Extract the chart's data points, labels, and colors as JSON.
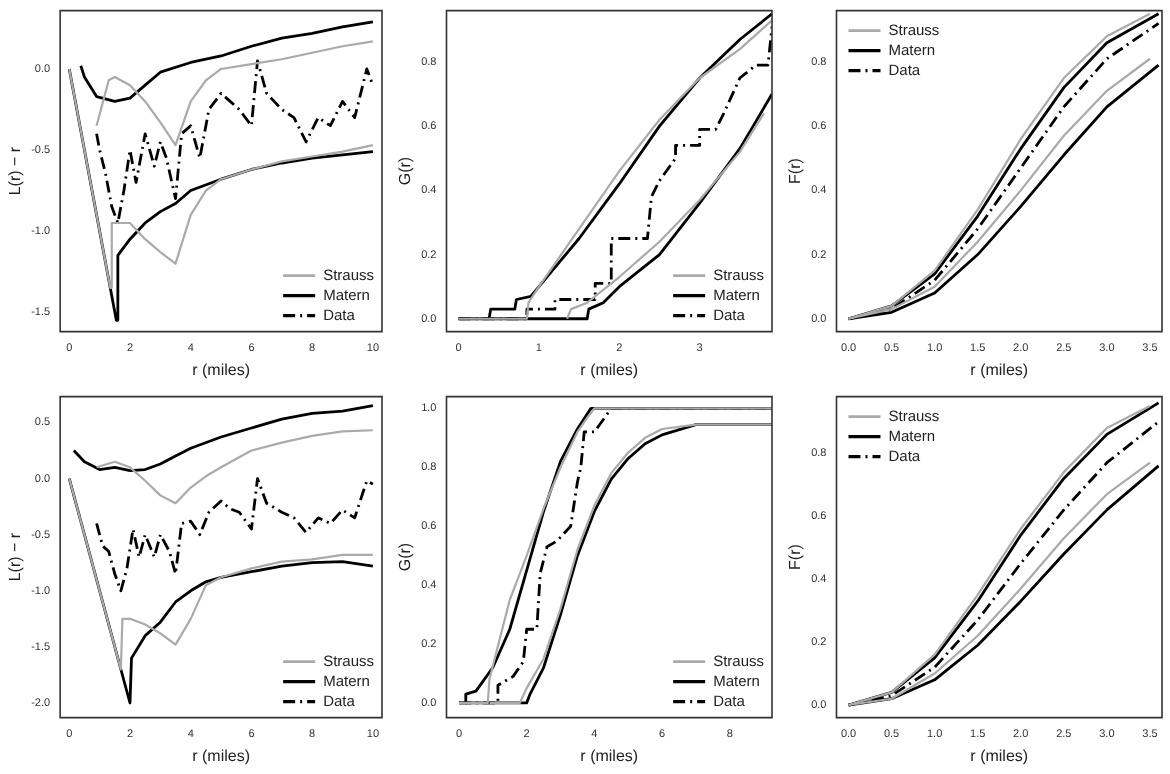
{
  "chart_data": [
    {
      "type": "line",
      "xlabel": "r (miles)",
      "ylabel": "L(r) − r",
      "xlim": [
        -0.3,
        10.3
      ],
      "ylim": [
        -1.62,
        0.36
      ],
      "xticks": [
        0,
        2,
        4,
        6,
        8,
        10
      ],
      "yticks": [
        {
          "value": -1.5,
          "label": "-1.5"
        },
        {
          "value": -1,
          "label": "-1.0"
        },
        {
          "value": -0.5,
          "label": "-0.5"
        },
        {
          "value": 0,
          "label": "0.0"
        }
      ],
      "grid": false,
      "legend": "bottom right",
      "marker": "none",
      "series": [
        {
          "name": "Strauss",
          "color": "#aaaaaa",
          "x": [
            0.9,
            1.3,
            1.5,
            2,
            2.5,
            3,
            3.5,
            4,
            4.5,
            5,
            6,
            7,
            8,
            9,
            10
          ],
          "values": [
            -0.35,
            -0.07,
            -0.05,
            -0.1,
            -0.2,
            -0.33,
            -0.47,
            -0.2,
            -0.07,
            0,
            0.03,
            0.06,
            0.1,
            0.14,
            0.17
          ]
        },
        {
          "color": "#aaaaaa",
          "x": [
            0,
            1.35,
            1.4,
            2,
            2.5,
            3,
            3.5,
            4,
            4.5,
            5,
            6,
            7,
            8,
            9,
            10
          ],
          "values": [
            0,
            -1.35,
            -0.95,
            -0.95,
            -1.05,
            -1.13,
            -1.2,
            -0.9,
            -0.75,
            -0.68,
            -0.62,
            -0.57,
            -0.54,
            -0.51,
            -0.47
          ]
        },
        {
          "name": "Matern",
          "color": "#000000",
          "x": [
            0.38,
            0.5,
            0.9,
            1.5,
            2,
            2.5,
            3,
            4,
            5,
            6,
            7,
            8,
            9,
            10
          ],
          "values": [
            0.02,
            -0.05,
            -0.17,
            -0.2,
            -0.18,
            -0.1,
            -0.02,
            0.04,
            0.08,
            0.14,
            0.19,
            0.22,
            0.26,
            0.29
          ]
        },
        {
          "color": "#000000",
          "x": [
            0,
            1.55,
            1.6,
            2,
            2.5,
            3,
            3.5,
            4,
            5,
            6,
            7,
            8,
            9,
            10
          ],
          "values": [
            0,
            -1.55,
            -1.15,
            -1.05,
            -0.95,
            -0.88,
            -0.83,
            -0.75,
            -0.68,
            -0.62,
            -0.58,
            -0.55,
            -0.53,
            -0.51
          ]
        },
        {
          "name": "Data",
          "color": "#000000",
          "line_style": "dashed",
          "x": [
            0.9,
            1,
            1.2,
            1.4,
            1.6,
            1.8,
            2,
            2.2,
            2.5,
            2.8,
            3,
            3.2,
            3.5,
            3.7,
            4,
            4.3,
            4.6,
            5,
            5.3,
            5.6,
            6,
            6.2,
            6.5,
            7,
            7.4,
            7.8,
            8.2,
            8.6,
            9,
            9.4,
            9.8,
            10
          ],
          "values": [
            -0.4,
            -0.5,
            -0.65,
            -0.85,
            -0.95,
            -0.75,
            -0.5,
            -0.7,
            -0.4,
            -0.6,
            -0.45,
            -0.55,
            -0.8,
            -0.4,
            -0.35,
            -0.55,
            -0.25,
            -0.15,
            -0.2,
            -0.25,
            -0.35,
            0.05,
            -0.15,
            -0.25,
            -0.3,
            -0.45,
            -0.3,
            -0.35,
            -0.2,
            -0.3,
            0,
            -0.1
          ]
        }
      ]
    },
    {
      "type": "line",
      "xlabel": "r (miles)",
      "ylabel": "G(r)",
      "xlim": [
        -0.15,
        3.9
      ],
      "ylim": [
        -0.04,
        0.96
      ],
      "xticks": [
        0,
        1,
        2,
        3
      ],
      "yticks": [
        {
          "value": 0,
          "label": "0.0"
        },
        0.2,
        0.4,
        0.6,
        0.8
      ],
      "grid": false,
      "legend": "bottom right",
      "marker": "none",
      "series": [
        {
          "name": "Strauss",
          "color": "#aaaaaa",
          "x": [
            0,
            0.85,
            0.87,
            1,
            1.5,
            2,
            2.5,
            3,
            3.5,
            3.9
          ],
          "values": [
            0,
            0,
            0.05,
            0.1,
            0.28,
            0.46,
            0.62,
            0.75,
            0.84,
            0.93
          ]
        },
        {
          "color": "#aaaaaa",
          "x": [
            1.35,
            1.4,
            1.6,
            2,
            2.5,
            3,
            3.5,
            3.8
          ],
          "values": [
            0,
            0.03,
            0.05,
            0.13,
            0.24,
            0.37,
            0.52,
            0.64
          ]
        },
        {
          "name": "Matern",
          "color": "#000000",
          "x": [
            0,
            0.38,
            0.4,
            0.7,
            0.72,
            0.9,
            1,
            1.5,
            2,
            2.5,
            3,
            3.5,
            3.9
          ],
          "values": [
            0,
            0,
            0.03,
            0.03,
            0.06,
            0.07,
            0.1,
            0.25,
            0.42,
            0.6,
            0.75,
            0.87,
            0.95
          ]
        },
        {
          "color": "#000000",
          "x": [
            0.4,
            1.6,
            1.62,
            1.8,
            2,
            2.5,
            3,
            3.5,
            3.9
          ],
          "values": [
            0,
            0,
            0.03,
            0.05,
            0.1,
            0.2,
            0.36,
            0.53,
            0.7
          ]
        },
        {
          "name": "Data",
          "color": "#000000",
          "line_style": "dashed",
          "x": [
            0,
            0.85,
            0.85,
            1.2,
            1.2,
            1.7,
            1.7,
            1.9,
            1.9,
            2.35,
            2.4,
            2.5,
            2.7,
            2.7,
            3,
            3,
            3.2,
            3.3,
            3.5,
            3.7,
            3.85,
            3.9
          ],
          "values": [
            0,
            0,
            0.03,
            0.03,
            0.06,
            0.06,
            0.11,
            0.11,
            0.25,
            0.25,
            0.38,
            0.43,
            0.5,
            0.54,
            0.54,
            0.59,
            0.59,
            0.64,
            0.75,
            0.79,
            0.79,
            0.91
          ]
        }
      ]
    },
    {
      "type": "line",
      "xlabel": "r (miles)",
      "ylabel": "F(r)",
      "xlim": [
        -0.14,
        3.64
      ],
      "ylim": [
        -0.04,
        0.96
      ],
      "xticks": [
        {
          "value": 0,
          "label": "0.0"
        },
        0.5,
        {
          "value": 1,
          "label": "1.0"
        },
        1.5,
        {
          "value": 2,
          "label": "2.0"
        },
        2.5,
        {
          "value": 3,
          "label": "3.0"
        },
        3.5
      ],
      "yticks": [
        {
          "value": 0,
          "label": "0.0"
        },
        0.2,
        0.4,
        0.6,
        0.8
      ],
      "grid": false,
      "legend": "top left",
      "marker": "none",
      "series": [
        {
          "name": "Strauss",
          "color": "#aaaaaa",
          "x": [
            0,
            0.5,
            1,
            1.5,
            2,
            2.5,
            3,
            3.5
          ],
          "values": [
            0,
            0.04,
            0.15,
            0.34,
            0.56,
            0.75,
            0.88,
            0.95
          ]
        },
        {
          "color": "#aaaaaa",
          "x": [
            0,
            0.5,
            1,
            1.5,
            2,
            2.5,
            3,
            3.5
          ],
          "values": [
            0,
            0.03,
            0.1,
            0.24,
            0.4,
            0.57,
            0.71,
            0.81
          ]
        },
        {
          "name": "Matern",
          "color": "#000000",
          "x": [
            0,
            0.5,
            1,
            1.5,
            2,
            2.5,
            3,
            3.6
          ],
          "values": [
            0,
            0.04,
            0.14,
            0.32,
            0.53,
            0.72,
            0.86,
            0.95
          ]
        },
        {
          "color": "#000000",
          "x": [
            0,
            0.5,
            1,
            1.5,
            2,
            2.5,
            3,
            3.6
          ],
          "values": [
            0,
            0.02,
            0.08,
            0.2,
            0.35,
            0.51,
            0.66,
            0.79
          ]
        },
        {
          "name": "Data",
          "color": "#000000",
          "line_style": "dashed",
          "x": [
            0,
            0.5,
            1,
            1.5,
            2,
            2.5,
            3,
            3.6
          ],
          "values": [
            0,
            0.03,
            0.12,
            0.28,
            0.47,
            0.66,
            0.81,
            0.92
          ]
        }
      ]
    },
    {
      "type": "line",
      "xlabel": "r (miles)",
      "ylabel": "L(r) − r",
      "xlim": [
        -0.3,
        10.3
      ],
      "ylim": [
        -2.13,
        0.73
      ],
      "xticks": [
        0,
        2,
        4,
        6,
        8,
        10
      ],
      "yticks": [
        {
          "value": -2,
          "label": "-2.0"
        },
        {
          "value": -1.5,
          "label": "-1.5"
        },
        {
          "value": -1,
          "label": "-1.0"
        },
        {
          "value": -0.5,
          "label": "-0.5"
        },
        {
          "value": 0,
          "label": "0.0"
        },
        0.5
      ],
      "grid": false,
      "legend": "bottom right",
      "marker": "none",
      "series": [
        {
          "name": "Strauss",
          "color": "#aaaaaa",
          "x": [
            0.9,
            1.5,
            2,
            2.5,
            3,
            3.5,
            4,
            4.5,
            5,
            6,
            7,
            8,
            9,
            10
          ],
          "values": [
            0.1,
            0.15,
            0.1,
            -0.02,
            -0.15,
            -0.22,
            -0.08,
            0.02,
            0.1,
            0.25,
            0.32,
            0.38,
            0.42,
            0.43
          ]
        },
        {
          "color": "#aaaaaa",
          "x": [
            0,
            1.7,
            1.75,
            2,
            2.5,
            3,
            3.5,
            4,
            4.5,
            5,
            6,
            7,
            8,
            9,
            10
          ],
          "values": [
            0,
            -1.7,
            -1.25,
            -1.25,
            -1.3,
            -1.38,
            -1.48,
            -1.25,
            -0.95,
            -0.88,
            -0.8,
            -0.74,
            -0.72,
            -0.68,
            -0.68
          ]
        },
        {
          "name": "Matern",
          "color": "#000000",
          "x": [
            0.15,
            0.5,
            1,
            1.5,
            2,
            2.5,
            3,
            3.5,
            4,
            5,
            6,
            7,
            8,
            9,
            10
          ],
          "values": [
            0.25,
            0.15,
            0.08,
            0.1,
            0.07,
            0.08,
            0.13,
            0.2,
            0.27,
            0.37,
            0.45,
            0.53,
            0.58,
            0.6,
            0.65
          ]
        },
        {
          "color": "#000000",
          "x": [
            0,
            2,
            2.05,
            2.5,
            3,
            3.5,
            4,
            4.5,
            5,
            6,
            7,
            8,
            9,
            10
          ],
          "values": [
            0,
            -2,
            -1.6,
            -1.4,
            -1.28,
            -1.1,
            -1,
            -0.92,
            -0.88,
            -0.83,
            -0.78,
            -0.75,
            -0.74,
            -0.78
          ]
        },
        {
          "name": "Data",
          "color": "#000000",
          "line_style": "dashed",
          "x": [
            0.9,
            1.1,
            1.3,
            1.5,
            1.7,
            1.9,
            2.1,
            2.3,
            2.5,
            2.8,
            3,
            3.3,
            3.5,
            3.7,
            4,
            4.3,
            4.6,
            5,
            5.3,
            5.6,
            6,
            6.2,
            6.5,
            7,
            7.4,
            7.8,
            8.2,
            8.6,
            9,
            9.4,
            9.8,
            10
          ],
          "values": [
            -0.4,
            -0.6,
            -0.65,
            -0.85,
            -1,
            -0.8,
            -0.45,
            -0.7,
            -0.5,
            -0.7,
            -0.5,
            -0.65,
            -0.85,
            -0.4,
            -0.38,
            -0.5,
            -0.3,
            -0.2,
            -0.27,
            -0.3,
            -0.45,
            0,
            -0.22,
            -0.3,
            -0.35,
            -0.48,
            -0.35,
            -0.4,
            -0.28,
            -0.35,
            -0.02,
            -0.05
          ]
        }
      ]
    },
    {
      "type": "line",
      "xlabel": "r (miles)",
      "ylabel": "G(r)",
      "xlim": [
        -0.37,
        9.25
      ],
      "ylim": [
        -0.05,
        1.04
      ],
      "xticks": [
        0,
        2,
        4,
        6,
        8
      ],
      "yticks": [
        {
          "value": 0,
          "label": "0.0"
        },
        0.2,
        0.4,
        0.6,
        0.8,
        {
          "value": 1,
          "label": "1.0"
        }
      ],
      "grid": false,
      "legend": "bottom right",
      "marker": "none",
      "series": [
        {
          "name": "Strauss",
          "color": "#aaaaaa",
          "x": [
            0,
            0.85,
            0.9,
            1.5,
            2,
            2.5,
            3,
            3.5,
            3.8,
            4,
            9.25
          ],
          "values": [
            0,
            0,
            0.08,
            0.35,
            0.5,
            0.66,
            0.8,
            0.92,
            0.97,
            1,
            1
          ]
        },
        {
          "color": "#aaaaaa",
          "x": [
            0.9,
            1.8,
            2,
            2.5,
            3,
            3.5,
            4,
            4.5,
            5,
            5.5,
            6,
            7,
            9.25
          ],
          "values": [
            0,
            0,
            0.05,
            0.15,
            0.32,
            0.52,
            0.67,
            0.78,
            0.85,
            0.9,
            0.93,
            0.945,
            0.945
          ]
        },
        {
          "name": "Matern",
          "color": "#000000",
          "x": [
            0,
            0.15,
            0.2,
            0.5,
            1,
            1.5,
            2,
            2.5,
            3,
            3.5,
            3.9,
            9.25
          ],
          "values": [
            0,
            0,
            0.03,
            0.04,
            0.12,
            0.25,
            0.45,
            0.65,
            0.82,
            0.93,
            1,
            1
          ]
        },
        {
          "color": "#000000",
          "x": [
            0.2,
            2,
            2.1,
            2.5,
            3,
            3.5,
            4,
            4.5,
            5,
            5.5,
            6,
            7,
            9.25
          ],
          "values": [
            0,
            0,
            0.03,
            0.12,
            0.3,
            0.5,
            0.65,
            0.76,
            0.83,
            0.88,
            0.91,
            0.945,
            0.945
          ]
        },
        {
          "name": "Data",
          "color": "#000000",
          "line_style": "dashed",
          "x": [
            0,
            1.15,
            1.15,
            1.6,
            1.9,
            2,
            2.3,
            2.4,
            2.6,
            2.9,
            3.3,
            3.5,
            3.6,
            3.7,
            4,
            4.5,
            9.25
          ],
          "values": [
            0,
            0,
            0.06,
            0.09,
            0.14,
            0.25,
            0.25,
            0.44,
            0.53,
            0.55,
            0.6,
            0.75,
            0.8,
            0.92,
            0.92,
            1,
            1
          ]
        }
      ]
    },
    {
      "type": "line",
      "xlabel": "r (miles)",
      "ylabel": "F(r)",
      "xlim": [
        -0.14,
        3.64
      ],
      "ylim": [
        -0.04,
        0.98
      ],
      "xticks": [
        {
          "value": 0,
          "label": "0.0"
        },
        0.5,
        {
          "value": 1,
          "label": "1.0"
        },
        1.5,
        {
          "value": 2,
          "label": "2.0"
        },
        2.5,
        {
          "value": 3,
          "label": "3.0"
        },
        3.5
      ],
      "yticks": [
        {
          "value": 0,
          "label": "0.0"
        },
        0.2,
        0.4,
        0.6,
        0.8
      ],
      "grid": false,
      "legend": "top left",
      "marker": "none",
      "series": [
        {
          "name": "Strauss",
          "color": "#aaaaaa",
          "x": [
            0,
            0.5,
            1,
            1.5,
            2,
            2.5,
            3,
            3.5
          ],
          "values": [
            0,
            0.04,
            0.16,
            0.35,
            0.56,
            0.74,
            0.88,
            0.95
          ]
        },
        {
          "color": "#aaaaaa",
          "x": [
            0,
            0.5,
            1,
            1.5,
            2,
            2.5,
            3,
            3.5
          ],
          "values": [
            0,
            0.02,
            0.1,
            0.22,
            0.37,
            0.53,
            0.67,
            0.77
          ]
        },
        {
          "name": "Matern",
          "color": "#000000",
          "x": [
            0,
            0.5,
            1,
            1.5,
            2,
            2.5,
            3,
            3.6
          ],
          "values": [
            0,
            0.04,
            0.15,
            0.33,
            0.54,
            0.72,
            0.86,
            0.96
          ]
        },
        {
          "color": "#000000",
          "x": [
            0,
            0.5,
            1,
            1.5,
            2,
            2.5,
            3,
            3.6
          ],
          "values": [
            0,
            0.02,
            0.08,
            0.19,
            0.33,
            0.48,
            0.62,
            0.76
          ]
        },
        {
          "name": "Data",
          "color": "#000000",
          "line_style": "dashed",
          "x": [
            0,
            0.5,
            1,
            1.5,
            2,
            2.5,
            3,
            3.6
          ],
          "values": [
            0,
            0.03,
            0.12,
            0.27,
            0.45,
            0.62,
            0.77,
            0.9
          ]
        }
      ]
    }
  ]
}
